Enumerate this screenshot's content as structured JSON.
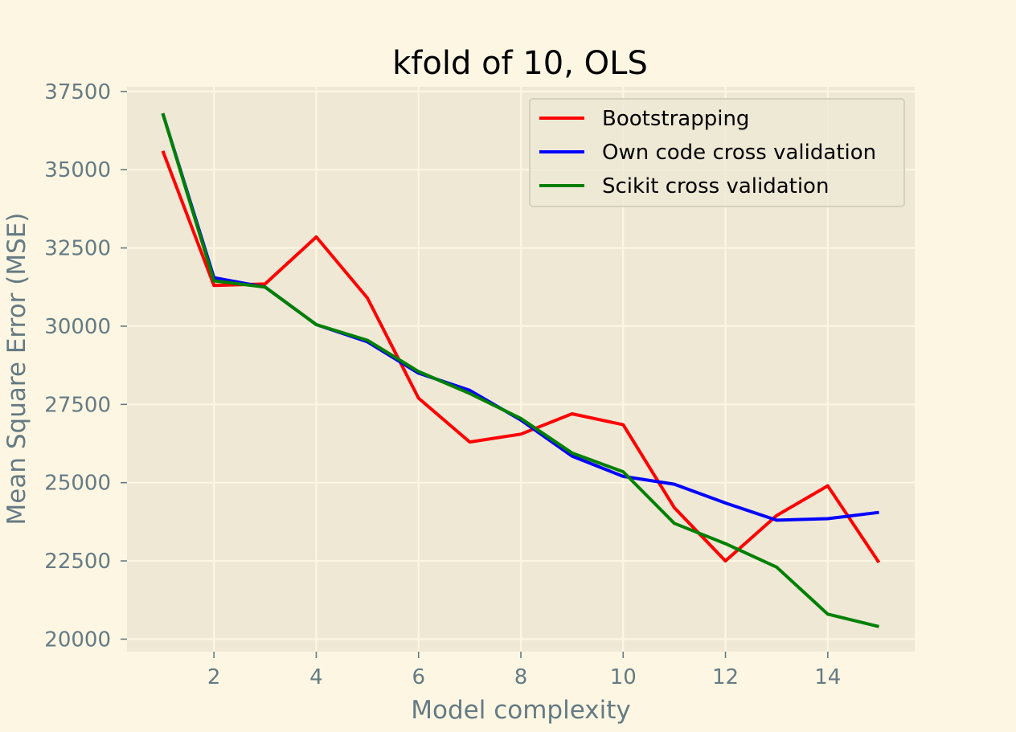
{
  "colors": {
    "figure_background": "#fdf6e3",
    "axes_background": "#eee8d5",
    "grid": "#fdf6e3",
    "tick_and_label": "#657b83",
    "title": "#000000"
  },
  "chart_data": {
    "type": "line",
    "title": "kfold of 10, OLS",
    "xlabel": "Model complexity",
    "ylabel": "Mean Square Error (MSE)",
    "xlim": [
      0.3,
      15.7
    ],
    "ylim": [
      19600,
      37650
    ],
    "xticks": [
      2,
      4,
      6,
      8,
      10,
      12,
      14
    ],
    "yticks": [
      20000,
      22500,
      25000,
      27500,
      30000,
      32500,
      35000,
      37500
    ],
    "grid": true,
    "legend_position": "upper right",
    "x": [
      1,
      2,
      3,
      4,
      5,
      6,
      7,
      8,
      9,
      10,
      11,
      12,
      13,
      14,
      15
    ],
    "series": [
      {
        "name": "Bootstrapping",
        "color": "#ff0000",
        "values": [
          35600,
          31300,
          31350,
          32850,
          30900,
          27700,
          26300,
          26550,
          27200,
          26850,
          24200,
          22500,
          23950,
          24900,
          22450
        ]
      },
      {
        "name": "Own code cross validation",
        "color": "#0000ff",
        "values": [
          36800,
          31550,
          31250,
          30050,
          29500,
          28500,
          27950,
          27000,
          25850,
          25200,
          24950,
          24350,
          23800,
          23850,
          24050
        ]
      },
      {
        "name": "Scikit cross validation",
        "color": "#008000",
        "values": [
          36800,
          31450,
          31250,
          30050,
          29550,
          28550,
          27850,
          27050,
          25950,
          25350,
          23700,
          23050,
          22300,
          20800,
          20400
        ]
      }
    ]
  }
}
